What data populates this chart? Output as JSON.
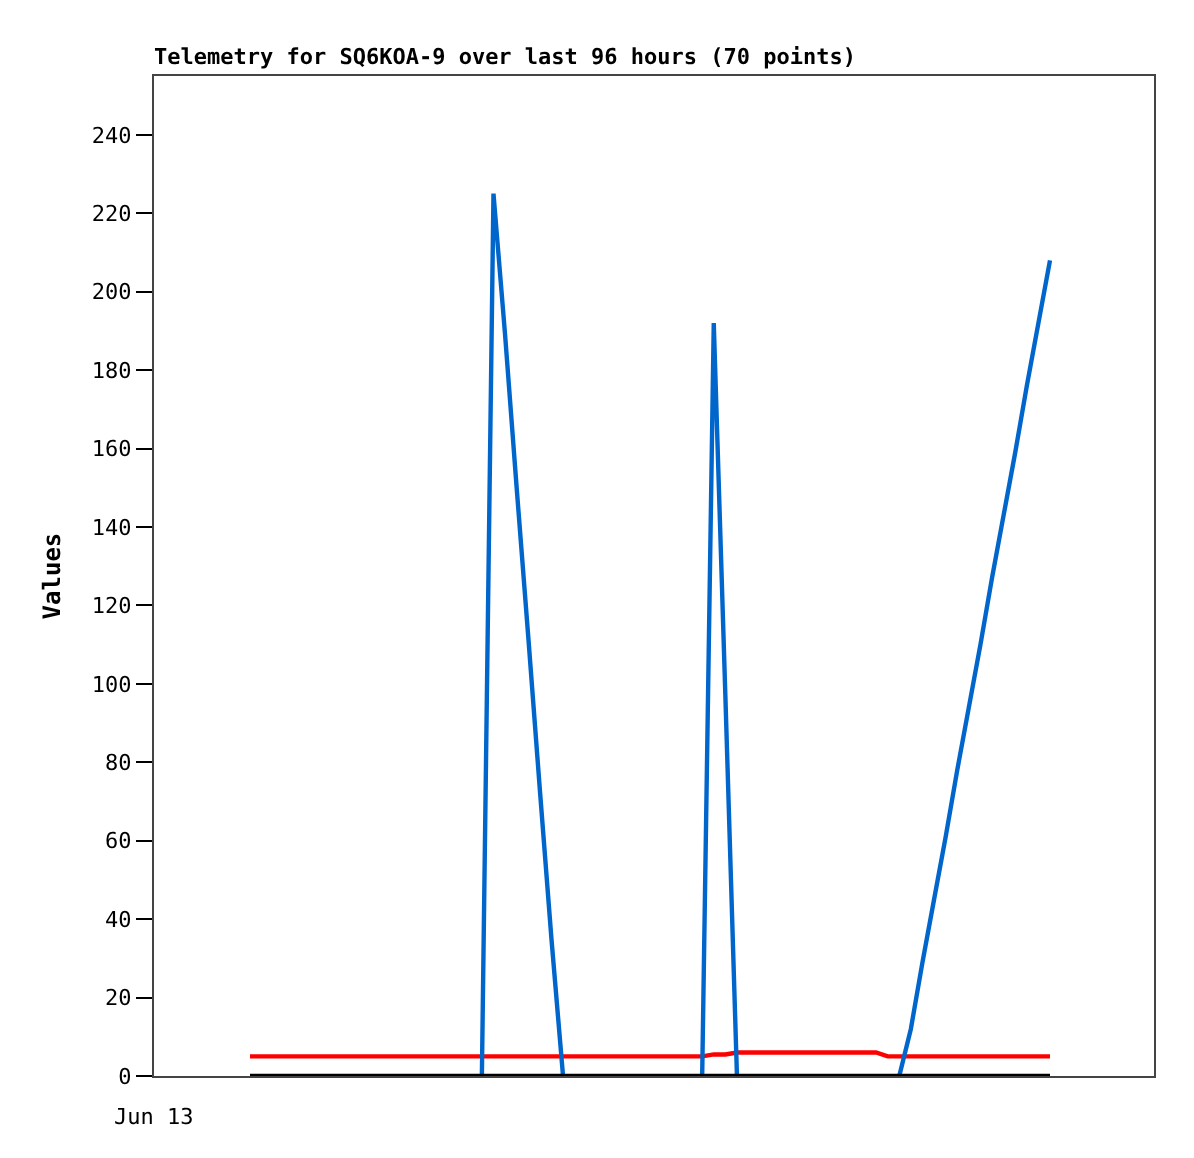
{
  "chart_data": {
    "type": "line",
    "title": "Telemetry for SQ6KOA-9 over last 96 hours (70 points)",
    "ylabel": "Values",
    "annotations": [
      "Jun 13"
    ],
    "categories": [
      null,
      null,
      null,
      null,
      null,
      null,
      null,
      null,
      null,
      null,
      null,
      null,
      null,
      null,
      null,
      null,
      null,
      null,
      null,
      null,
      null,
      null,
      null,
      null,
      null,
      null,
      null,
      null,
      null,
      null,
      null,
      null,
      null,
      null,
      null,
      null,
      null,
      null,
      null,
      null,
      null,
      null,
      null,
      null,
      null,
      null,
      null,
      null,
      null,
      null,
      null,
      null,
      null,
      null,
      null,
      null,
      null,
      null,
      null,
      null,
      null,
      null,
      null,
      null,
      null,
      null,
      null,
      null,
      null,
      null
    ],
    "ylim": [
      0,
      255
    ],
    "yticks": [
      0,
      20,
      40,
      60,
      80,
      100,
      120,
      140,
      160,
      180,
      200,
      220,
      240
    ],
    "line_style": "solid",
    "series": [
      {
        "color": "#ff0000",
        "values": [
          5,
          5,
          5,
          5,
          5,
          5,
          5,
          5,
          5,
          5,
          5,
          5,
          5,
          5,
          5,
          5,
          5,
          5,
          5,
          5,
          5,
          5,
          5,
          5,
          5,
          5,
          5,
          5,
          5,
          5,
          5,
          5,
          5,
          5,
          5,
          5,
          5,
          5,
          5,
          5,
          5.5,
          5.5,
          6,
          6,
          6,
          6,
          6,
          6,
          6,
          6,
          6,
          6,
          6,
          6,
          6,
          5,
          5,
          5,
          5,
          5,
          5,
          5,
          5,
          5,
          5,
          5,
          5,
          5,
          5,
          5
        ]
      },
      {
        "color": "#0066cc",
        "values": [
          null,
          null,
          null,
          null,
          null,
          null,
          null,
          null,
          null,
          null,
          null,
          null,
          null,
          null,
          null,
          null,
          null,
          null,
          null,
          null,
          0,
          225,
          189,
          150,
          112,
          73,
          35,
          0,
          null,
          null,
          null,
          null,
          null,
          null,
          null,
          null,
          null,
          null,
          null,
          0,
          192,
          97,
          0,
          null,
          null,
          null,
          null,
          null,
          null,
          null,
          null,
          null,
          null,
          null,
          null,
          null,
          0,
          12,
          29,
          45,
          61,
          78,
          94,
          110,
          127,
          143,
          159,
          176,
          192,
          208
        ]
      },
      {
        "color": "#000000",
        "values": [
          0,
          0,
          0,
          0,
          0,
          0,
          0,
          0,
          0,
          0,
          0,
          0,
          0,
          0,
          0,
          0,
          0,
          0,
          0,
          0,
          0,
          0,
          0,
          0,
          0,
          0,
          0,
          0,
          0,
          0,
          0,
          0,
          0,
          0,
          0,
          0,
          0,
          0,
          0,
          0,
          0,
          0,
          0,
          0,
          0,
          0,
          0,
          0,
          0,
          0,
          0,
          0,
          0,
          0,
          0,
          0,
          0,
          0,
          0,
          0,
          0,
          0,
          0,
          0,
          0,
          0,
          0,
          0,
          0,
          0
        ]
      }
    ]
  }
}
